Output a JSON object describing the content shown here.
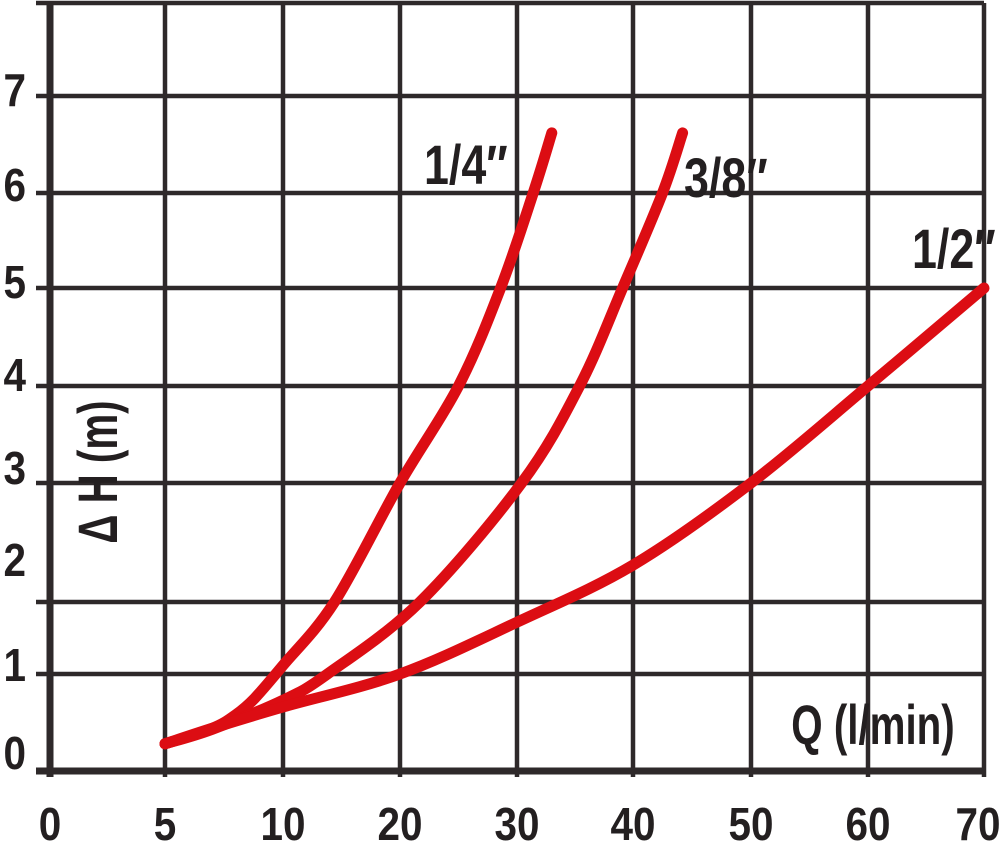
{
  "chart_data": {
    "type": "line",
    "title": "",
    "xlabel": "Q (l/min)",
    "ylabel": "Δ H (m)",
    "x_ticks": [
      "0",
      "5",
      "10",
      "20",
      "30",
      "40",
      "50",
      "60",
      "70"
    ],
    "x_tick_values": [
      0,
      5,
      10,
      20,
      30,
      40,
      50,
      60,
      70
    ],
    "y_ticks": [
      "0",
      "1",
      "2",
      "3",
      "4",
      "5",
      "6",
      "7"
    ],
    "y_tick_values": [
      0,
      1,
      2,
      3,
      4,
      5,
      6,
      7
    ],
    "ylim": [
      0,
      8
    ],
    "xlim": [
      0,
      70
    ],
    "grid": true,
    "legend_position": "labels-at-curve-ends",
    "colors": {
      "curve_red": "#dc0d13",
      "grid": "#2e292a",
      "axis": "#231f20",
      "text": "#231f20",
      "background": "#ffffff"
    },
    "series": [
      {
        "name": "1/4 inch",
        "label": "1/4″",
        "points": [
          [
            5,
            0.28
          ],
          [
            7,
            0.44
          ],
          [
            8,
            0.58
          ],
          [
            8.8,
            0.75
          ],
          [
            10,
            1.12
          ],
          [
            14.4,
            2.0
          ],
          [
            20,
            3.0
          ],
          [
            25,
            4.0
          ],
          [
            28.6,
            5.0
          ],
          [
            31.4,
            6.0
          ],
          [
            33,
            6.62
          ]
        ]
      },
      {
        "name": "3/8 inch",
        "label": "3/8″",
        "points": [
          [
            5,
            0.28
          ],
          [
            7,
            0.43
          ],
          [
            10,
            0.73
          ],
          [
            13.8,
            1.0
          ],
          [
            21.7,
            2.0
          ],
          [
            30.4,
            3.0
          ],
          [
            35.4,
            4.0
          ],
          [
            39.1,
            5.0
          ],
          [
            42.5,
            6.0
          ],
          [
            44.2,
            6.62
          ]
        ]
      },
      {
        "name": "1/2 inch",
        "label": "1/2″",
        "points": [
          [
            5,
            0.28
          ],
          [
            7,
            0.44
          ],
          [
            10,
            0.66
          ],
          [
            20,
            1.0
          ],
          [
            30,
            1.72
          ],
          [
            40,
            2.31
          ],
          [
            50,
            3.0
          ],
          [
            60,
            4.0
          ],
          [
            70,
            5.0
          ]
        ]
      }
    ]
  }
}
